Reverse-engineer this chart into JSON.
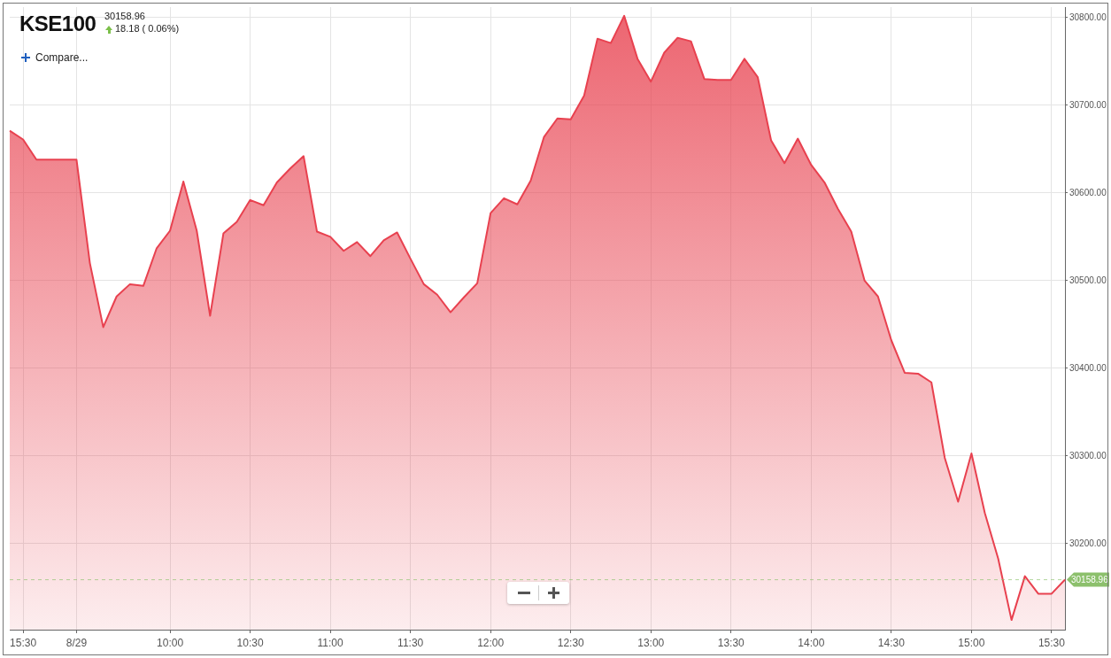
{
  "chart_data": {
    "type": "area",
    "title": "KSE100",
    "subtitle": "30158.96",
    "annotations": [
      "18.18 ( 0.06%)",
      "Compare..."
    ],
    "categories": [
      null,
      "15:30",
      null,
      null,
      null,
      "8/29",
      null,
      null,
      null,
      null,
      null,
      null,
      "10:00",
      null,
      null,
      null,
      null,
      null,
      "10:30",
      null,
      null,
      null,
      null,
      null,
      "11:00",
      null,
      null,
      null,
      null,
      null,
      "11:30",
      null,
      null,
      null,
      null,
      null,
      "12:00",
      null,
      null,
      null,
      null,
      null,
      "12:30",
      null,
      null,
      null,
      null,
      null,
      "13:00",
      null,
      null,
      null,
      null,
      null,
      "13:30",
      null,
      null,
      null,
      null,
      null,
      "14:00",
      null,
      null,
      null,
      null,
      null,
      "14:30",
      null,
      null,
      null,
      null,
      null,
      "15:00",
      null,
      null,
      null,
      null,
      null,
      "15:30",
      null
    ],
    "series": [
      {
        "color": "#e8414f",
        "values": [
          30671,
          30661,
          30638,
          30638,
          30638,
          30638,
          30520,
          30447,
          30482,
          30496,
          30494,
          30537,
          30557,
          30613,
          30557,
          30460,
          30554,
          30567,
          30592,
          30586,
          30612,
          30628,
          30642,
          30556,
          30550,
          30534,
          30544,
          30528,
          30546,
          30555,
          30525,
          30496,
          30484,
          30464,
          30481,
          30497,
          30577,
          30594,
          30587,
          30614,
          30664,
          30685,
          30684,
          30711,
          30776,
          30771,
          30802,
          30753,
          30727,
          30760,
          30777,
          30773,
          30730,
          30729,
          30729,
          30753,
          30732,
          30660,
          30634,
          30662,
          30632,
          30612,
          30582,
          30556,
          30500,
          30482,
          30432,
          30395,
          30394,
          30384,
          30298,
          30248,
          30303,
          30235,
          30183,
          30113,
          30163,
          30143,
          30143,
          30159
        ]
      }
    ],
    "ylim": [
      30102,
      30812
    ],
    "yticks": [
      {
        "value": 30200,
        "label": "30200.00"
      },
      {
        "value": 30300,
        "label": "30300.00"
      },
      {
        "value": 30400,
        "label": "30400.00"
      },
      {
        "value": 30500,
        "label": "30500.00"
      },
      {
        "value": 30600,
        "label": "30600.00"
      },
      {
        "value": 30700,
        "label": "30700.00"
      },
      {
        "value": 30800,
        "label": "30800.00"
      }
    ],
    "ref_lines": [
      {
        "axis": "y",
        "value": 30158.96,
        "label": "30158.96",
        "color": "#8cc06c",
        "line_style": "dashed"
      }
    ],
    "grid": true
  }
}
